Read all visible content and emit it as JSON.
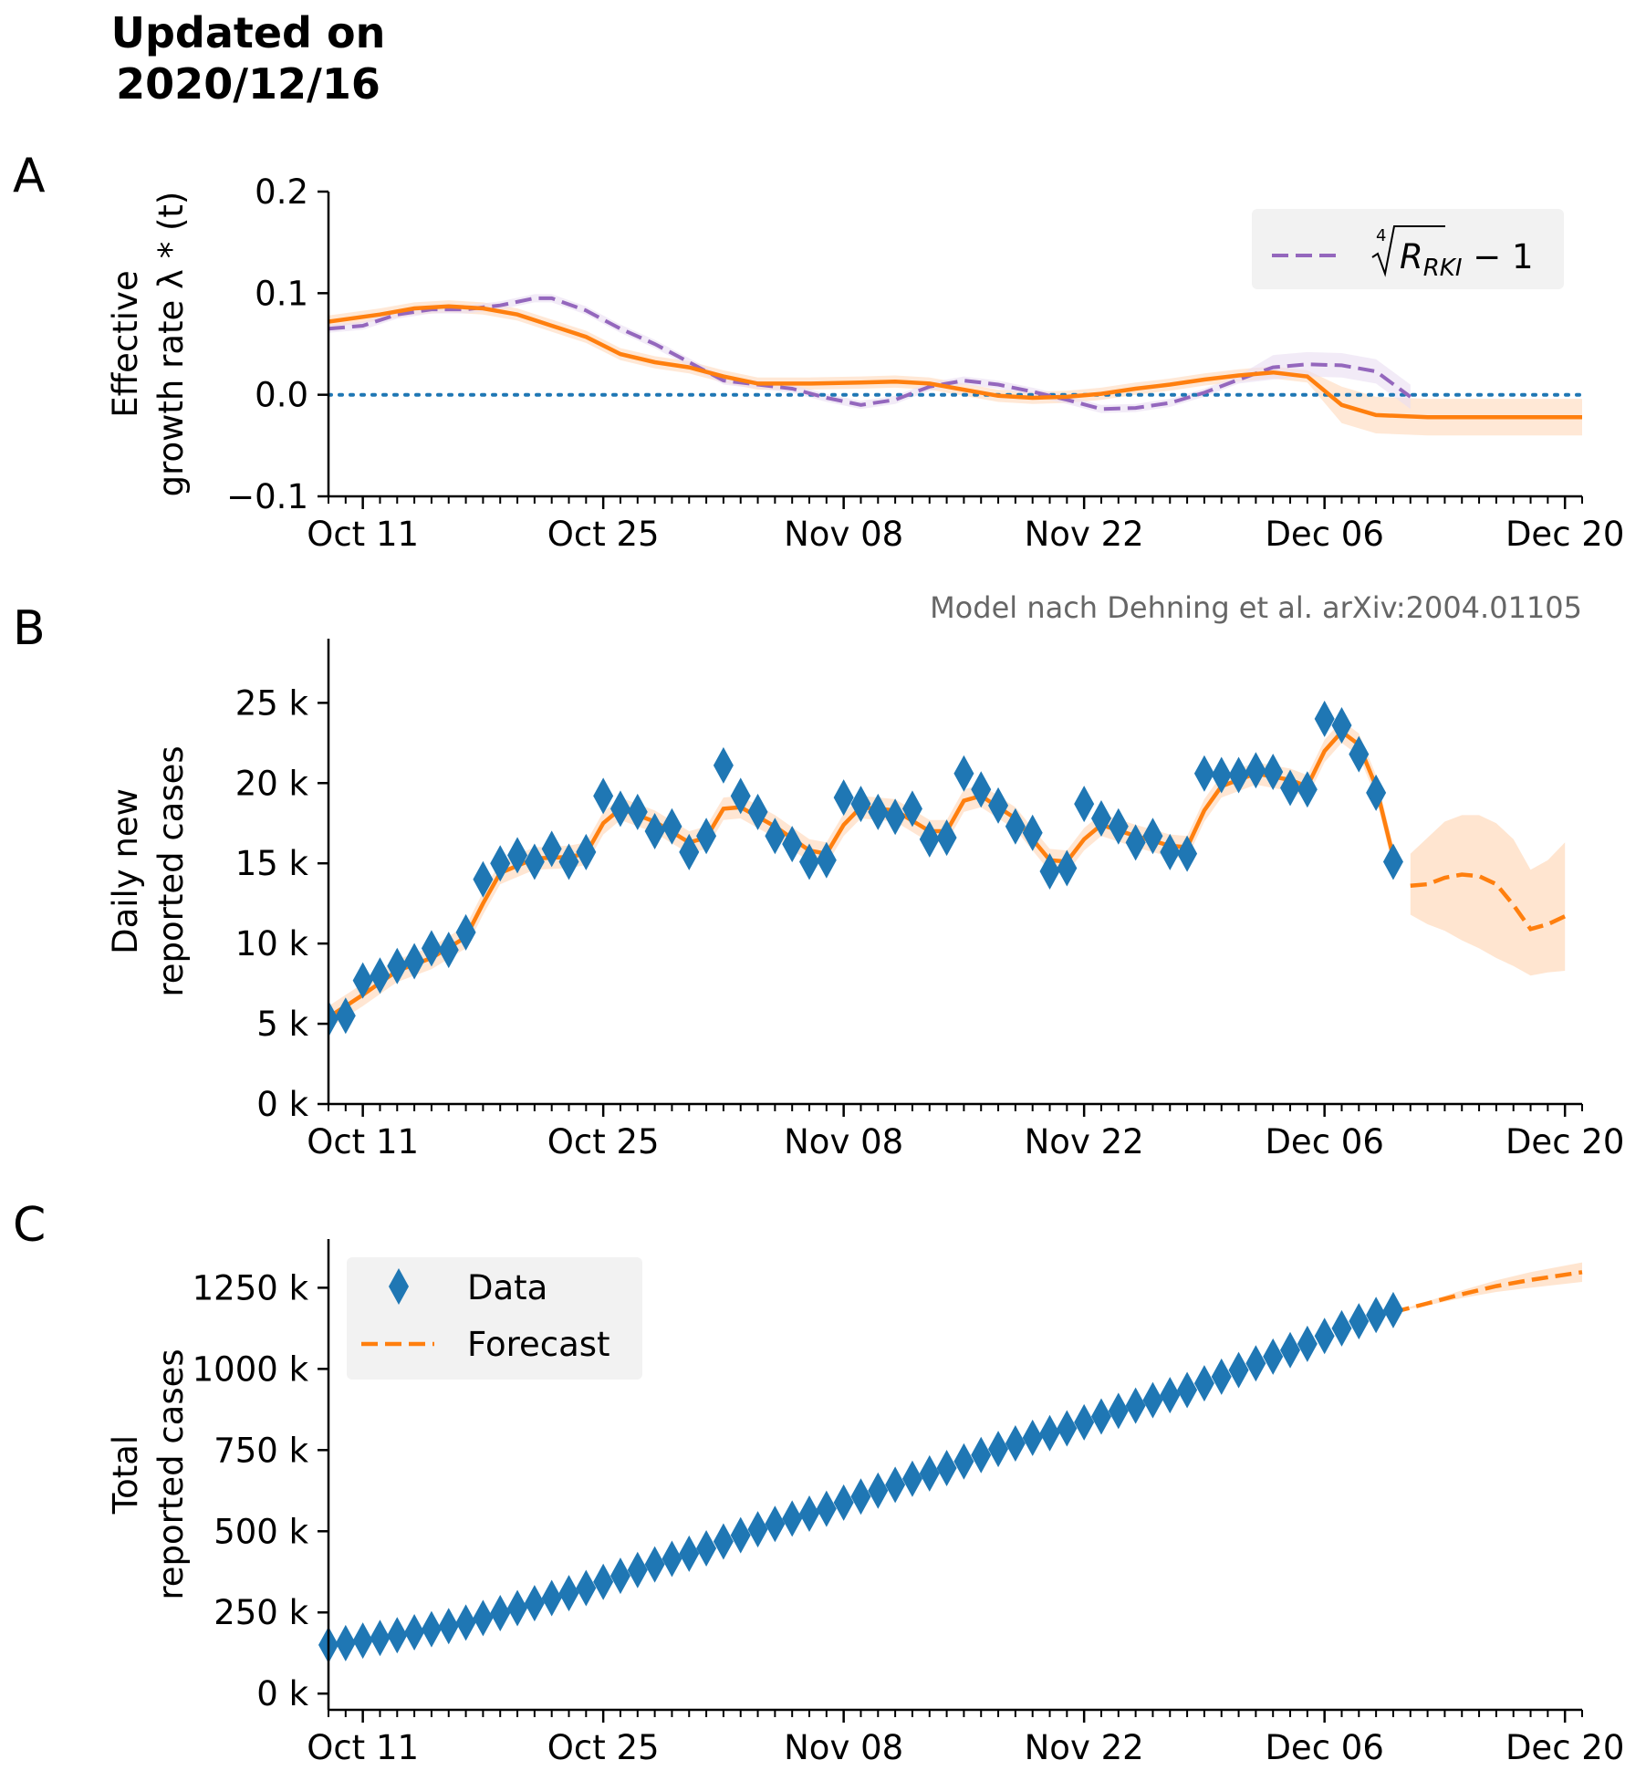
{
  "header": {
    "title_line1": "Updated on",
    "title_line2": "2020/12/16"
  },
  "annotation": "Model nach Dehning et al. arXiv:2004.01105",
  "colors": {
    "model": "#ff7f0e",
    "data": "#1f77b4",
    "rki": "#9467bd",
    "zero_line": "#1f77b4",
    "band": "#ffe0c8",
    "legend_bg": "#f2f2f2"
  },
  "x_axis": {
    "tick_labels": [
      "Oct 11",
      "Oct 25",
      "Nov 08",
      "Nov 22",
      "Dec 06",
      "Dec 20"
    ],
    "major_tick_dates": [
      "2020-10-11",
      "2020-10-25",
      "2020-11-08",
      "2020-11-22",
      "2020-12-06",
      "2020-12-20"
    ],
    "range": [
      "2020-10-09",
      "2020-12-21"
    ]
  },
  "chart_data": [
    {
      "panel": "A",
      "type": "line",
      "ylabel_line1": "Effective",
      "ylabel_line2": "growth rate λ * (t)",
      "ylim": [
        -0.1,
        0.2
      ],
      "y_ticks": [
        -0.1,
        0.0,
        0.1,
        0.2
      ],
      "y_tick_labels": [
        "−0.1",
        "0.0",
        "0.1",
        "0.2"
      ],
      "legend_label_root_index": "4",
      "legend_label_base": "R",
      "legend_label_sub": "RKI",
      "legend_label_tail": " − 1",
      "legend_position": "top-right",
      "series": [
        {
          "key": "model",
          "style": "solid",
          "band_half_width": 0.006,
          "band_half_width_forecast": 0.018,
          "points": [
            [
              "2020-10-09",
              0.072
            ],
            [
              "2020-10-12",
              0.079
            ],
            [
              "2020-10-14",
              0.085
            ],
            [
              "2020-10-16",
              0.087
            ],
            [
              "2020-10-18",
              0.085
            ],
            [
              "2020-10-20",
              0.079
            ],
            [
              "2020-10-22",
              0.068
            ],
            [
              "2020-10-24",
              0.057
            ],
            [
              "2020-10-26",
              0.04
            ],
            [
              "2020-10-28",
              0.032
            ],
            [
              "2020-10-30",
              0.027
            ],
            [
              "2020-11-01",
              0.018
            ],
            [
              "2020-11-03",
              0.011
            ],
            [
              "2020-11-06",
              0.011
            ],
            [
              "2020-11-09",
              0.012
            ],
            [
              "2020-11-11",
              0.013
            ],
            [
              "2020-11-13",
              0.011
            ],
            [
              "2020-11-15",
              0.005
            ],
            [
              "2020-11-17",
              -0.001
            ],
            [
              "2020-11-19",
              -0.003
            ],
            [
              "2020-11-21",
              -0.002
            ],
            [
              "2020-11-23",
              0.001
            ],
            [
              "2020-11-25",
              0.006
            ],
            [
              "2020-11-27",
              0.01
            ],
            [
              "2020-11-29",
              0.015
            ],
            [
              "2020-12-01",
              0.019
            ],
            [
              "2020-12-03",
              0.022
            ],
            [
              "2020-12-05",
              0.018
            ],
            [
              "2020-12-07",
              -0.01
            ],
            [
              "2020-12-09",
              -0.02
            ],
            [
              "2020-12-12",
              -0.022
            ],
            [
              "2020-12-21",
              -0.022
            ]
          ]
        },
        {
          "key": "rki",
          "style": "dashed",
          "band_half_width": 0.004,
          "band_half_width_end": 0.012,
          "points": [
            [
              "2020-10-09",
              0.065
            ],
            [
              "2020-10-11",
              0.068
            ],
            [
              "2020-10-13",
              0.079
            ],
            [
              "2020-10-15",
              0.084
            ],
            [
              "2020-10-17",
              0.084
            ],
            [
              "2020-10-19",
              0.088
            ],
            [
              "2020-10-21",
              0.095
            ],
            [
              "2020-10-22",
              0.095
            ],
            [
              "2020-10-24",
              0.083
            ],
            [
              "2020-10-26",
              0.065
            ],
            [
              "2020-10-28",
              0.05
            ],
            [
              "2020-10-30",
              0.032
            ],
            [
              "2020-11-01",
              0.014
            ],
            [
              "2020-11-03",
              0.01
            ],
            [
              "2020-11-05",
              0.006
            ],
            [
              "2020-11-07",
              -0.003
            ],
            [
              "2020-11-09",
              -0.01
            ],
            [
              "2020-11-11",
              -0.005
            ],
            [
              "2020-11-13",
              0.008
            ],
            [
              "2020-11-15",
              0.014
            ],
            [
              "2020-11-17",
              0.01
            ],
            [
              "2020-11-19",
              0.003
            ],
            [
              "2020-11-21",
              -0.005
            ],
            [
              "2020-11-23",
              -0.014
            ],
            [
              "2020-11-25",
              -0.013
            ],
            [
              "2020-11-27",
              -0.008
            ],
            [
              "2020-11-29",
              0.002
            ],
            [
              "2020-12-01",
              0.015
            ],
            [
              "2020-12-03",
              0.027
            ],
            [
              "2020-12-05",
              0.03
            ],
            [
              "2020-12-07",
              0.029
            ],
            [
              "2020-12-09",
              0.023
            ],
            [
              "2020-12-11",
              -0.002
            ]
          ]
        },
        {
          "key": "zero",
          "style": "dotted",
          "points": [
            [
              "2020-10-09",
              0.0
            ],
            [
              "2020-12-21",
              0.0
            ]
          ]
        }
      ]
    },
    {
      "panel": "B",
      "type": "line",
      "ylabel_line1": "Daily new",
      "ylabel_line2": "reported cases",
      "ylim": [
        0,
        29000
      ],
      "y_ticks": [
        0,
        5000,
        10000,
        15000,
        20000,
        25000
      ],
      "y_tick_labels": [
        "0 k",
        "5 k",
        "10 k",
        "15 k",
        "20 k",
        "25 k"
      ],
      "data_points": [
        [
          "2020-10-09",
          5300
        ],
        [
          "2020-10-10",
          5500
        ],
        [
          "2020-10-11",
          7700
        ],
        [
          "2020-10-12",
          8000
        ],
        [
          "2020-10-13",
          8600
        ],
        [
          "2020-10-14",
          8900
        ],
        [
          "2020-10-15",
          9700
        ],
        [
          "2020-10-16",
          9600
        ],
        [
          "2020-10-17",
          10700
        ],
        [
          "2020-10-18",
          14000
        ],
        [
          "2020-10-19",
          15000
        ],
        [
          "2020-10-20",
          15500
        ],
        [
          "2020-10-21",
          15100
        ],
        [
          "2020-10-22",
          15900
        ],
        [
          "2020-10-23",
          15100
        ],
        [
          "2020-10-24",
          15700
        ],
        [
          "2020-10-25",
          19200
        ],
        [
          "2020-10-26",
          18400
        ],
        [
          "2020-10-27",
          18200
        ],
        [
          "2020-10-28",
          17000
        ],
        [
          "2020-10-29",
          17300
        ],
        [
          "2020-10-30",
          15700
        ],
        [
          "2020-10-31",
          16700
        ],
        [
          "2020-11-01",
          21100
        ],
        [
          "2020-11-02",
          19200
        ],
        [
          "2020-11-03",
          18200
        ],
        [
          "2020-11-04",
          16700
        ],
        [
          "2020-11-05",
          16200
        ],
        [
          "2020-11-06",
          15100
        ],
        [
          "2020-11-07",
          15200
        ],
        [
          "2020-11-08",
          19100
        ],
        [
          "2020-11-09",
          18700
        ],
        [
          "2020-11-10",
          18200
        ],
        [
          "2020-11-11",
          17900
        ],
        [
          "2020-11-12",
          18400
        ],
        [
          "2020-11-13",
          16500
        ],
        [
          "2020-11-14",
          16600
        ],
        [
          "2020-11-15",
          20600
        ],
        [
          "2020-11-16",
          19600
        ],
        [
          "2020-11-17",
          18600
        ],
        [
          "2020-11-18",
          17300
        ],
        [
          "2020-11-19",
          16900
        ],
        [
          "2020-11-20",
          14500
        ],
        [
          "2020-11-21",
          14700
        ],
        [
          "2020-11-22",
          18700
        ],
        [
          "2020-11-23",
          17800
        ],
        [
          "2020-11-24",
          17300
        ],
        [
          "2020-11-25",
          16300
        ],
        [
          "2020-11-26",
          16700
        ],
        [
          "2020-11-27",
          15700
        ],
        [
          "2020-11-28",
          15600
        ],
        [
          "2020-11-29",
          20600
        ],
        [
          "2020-11-30",
          20500
        ],
        [
          "2020-12-01",
          20500
        ],
        [
          "2020-12-02",
          20800
        ],
        [
          "2020-12-03",
          20700
        ],
        [
          "2020-12-04",
          19700
        ],
        [
          "2020-12-05",
          19600
        ],
        [
          "2020-12-06",
          24000
        ],
        [
          "2020-12-07",
          23600
        ],
        [
          "2020-12-08",
          21800
        ],
        [
          "2020-12-09",
          19400
        ],
        [
          "2020-12-10",
          15100
        ]
      ],
      "model_fit": [
        [
          "2020-10-09",
          5400
        ],
        [
          "2020-10-11",
          6800
        ],
        [
          "2020-10-13",
          8300
        ],
        [
          "2020-10-15",
          9100
        ],
        [
          "2020-10-17",
          10400
        ],
        [
          "2020-10-18",
          12500
        ],
        [
          "2020-10-19",
          14400
        ],
        [
          "2020-10-21",
          15300
        ],
        [
          "2020-10-23",
          15400
        ],
        [
          "2020-10-24",
          15600
        ],
        [
          "2020-10-25",
          17500
        ],
        [
          "2020-10-26",
          18400
        ],
        [
          "2020-10-28",
          17600
        ],
        [
          "2020-10-30",
          16300
        ],
        [
          "2020-10-31",
          16600
        ],
        [
          "2020-11-01",
          18400
        ],
        [
          "2020-11-02",
          18500
        ],
        [
          "2020-11-04",
          17300
        ],
        [
          "2020-11-06",
          15800
        ],
        [
          "2020-11-07",
          15600
        ],
        [
          "2020-11-08",
          17400
        ],
        [
          "2020-11-09",
          18500
        ],
        [
          "2020-11-11",
          18300
        ],
        [
          "2020-11-13",
          17000
        ],
        [
          "2020-11-14",
          17000
        ],
        [
          "2020-11-15",
          18900
        ],
        [
          "2020-11-16",
          19200
        ],
        [
          "2020-11-18",
          17800
        ],
        [
          "2020-11-20",
          15200
        ],
        [
          "2020-11-21",
          15100
        ],
        [
          "2020-11-22",
          16500
        ],
        [
          "2020-11-23",
          17400
        ],
        [
          "2020-11-25",
          16700
        ],
        [
          "2020-11-27",
          16100
        ],
        [
          "2020-11-28",
          16000
        ],
        [
          "2020-11-29",
          18300
        ],
        [
          "2020-11-30",
          19800
        ],
        [
          "2020-12-02",
          20600
        ],
        [
          "2020-12-04",
          20200
        ],
        [
          "2020-12-05",
          19800
        ],
        [
          "2020-12-06",
          22000
        ],
        [
          "2020-12-07",
          23200
        ],
        [
          "2020-12-08",
          22400
        ],
        [
          "2020-12-09",
          19800
        ],
        [
          "2020-12-10",
          15400
        ]
      ],
      "forecast": [
        [
          "2020-12-11",
          13600
        ],
        [
          "2020-12-12",
          13700
        ],
        [
          "2020-12-13",
          14100
        ],
        [
          "2020-12-14",
          14300
        ],
        [
          "2020-12-15",
          14200
        ],
        [
          "2020-12-16",
          13700
        ],
        [
          "2020-12-17",
          12400
        ],
        [
          "2020-12-18",
          10900
        ],
        [
          "2020-12-19",
          11200
        ],
        [
          "2020-12-20",
          11700
        ]
      ],
      "forecast_band": [
        [
          "2020-12-11",
          11800,
          15600
        ],
        [
          "2020-12-12",
          11200,
          16600
        ],
        [
          "2020-12-13",
          10800,
          17600
        ],
        [
          "2020-12-14",
          10200,
          18000
        ],
        [
          "2020-12-15",
          9700,
          18000
        ],
        [
          "2020-12-16",
          9100,
          17500
        ],
        [
          "2020-12-17",
          8600,
          16500
        ],
        [
          "2020-12-18",
          8000,
          14600
        ],
        [
          "2020-12-19",
          8200,
          15200
        ],
        [
          "2020-12-20",
          8300,
          16300
        ]
      ]
    },
    {
      "panel": "C",
      "type": "scatter",
      "ylabel_line1": "Total",
      "ylabel_line2": "reported cases",
      "ylim": [
        -50000,
        1400000
      ],
      "y_ticks": [
        0,
        250000,
        500000,
        750000,
        1000000,
        1250000
      ],
      "y_tick_labels": [
        "0 k",
        "250 k",
        "500 k",
        "750 k",
        "1000 k",
        "1250 k"
      ],
      "legend_position": "top-left",
      "legend": [
        {
          "key": "data",
          "label": "Data"
        },
        {
          "key": "forecast",
          "label": "Forecast"
        }
      ],
      "start_date": "2020-10-09",
      "start_total": 150000,
      "forecast": [
        [
          "2020-12-10",
          1175000
        ],
        [
          "2020-12-12",
          1202000
        ],
        [
          "2020-12-14",
          1230000
        ],
        [
          "2020-12-16",
          1255000
        ],
        [
          "2020-12-18",
          1274000
        ],
        [
          "2020-12-21",
          1298000
        ]
      ]
    }
  ]
}
